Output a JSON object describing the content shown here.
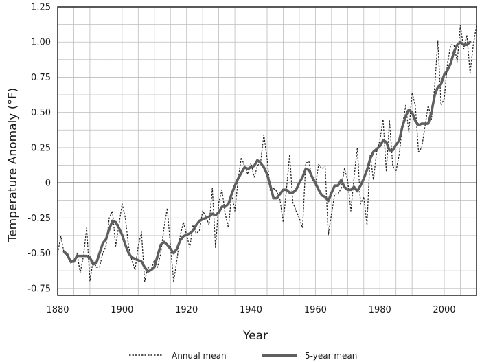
{
  "chart_data": {
    "type": "line",
    "title": "",
    "xlabel": "Year",
    "ylabel": "Temperature Anomaly (°F)",
    "xlim": [
      1880,
      2010
    ],
    "ylim": [
      -0.8,
      1.25
    ],
    "x_ticks": [
      1880,
      1900,
      1920,
      1940,
      1960,
      1980,
      2000
    ],
    "x_tick_labels": [
      "1880",
      "1900",
      "1920",
      "1940",
      "1960",
      "1980",
      "2000"
    ],
    "y_ticks": [
      -0.75,
      -0.5,
      -0.25,
      0,
      0.25,
      0.5,
      0.75,
      1.0,
      1.25
    ],
    "y_tick_labels": [
      "-0.75",
      "-0.50",
      "-0.25",
      "0",
      "0.25",
      "0.50",
      "0.75",
      "1.00",
      "1.25"
    ],
    "x_minor_step": 5,
    "y_minor_step": 0.125,
    "grid": true,
    "zero_line": true,
    "legend_position": "bottom-center",
    "series": [
      {
        "name": "Annual mean",
        "style": "dotted",
        "color": "#222222",
        "x": [
          1880,
          1881,
          1882,
          1883,
          1884,
          1885,
          1886,
          1887,
          1888,
          1889,
          1890,
          1891,
          1892,
          1893,
          1894,
          1895,
          1896,
          1897,
          1898,
          1899,
          1900,
          1901,
          1902,
          1903,
          1904,
          1905,
          1906,
          1907,
          1908,
          1909,
          1910,
          1911,
          1912,
          1913,
          1914,
          1915,
          1916,
          1917,
          1918,
          1919,
          1920,
          1921,
          1922,
          1923,
          1924,
          1925,
          1926,
          1927,
          1928,
          1929,
          1930,
          1931,
          1932,
          1933,
          1934,
          1935,
          1936,
          1937,
          1938,
          1939,
          1940,
          1941,
          1942,
          1943,
          1944,
          1945,
          1946,
          1947,
          1948,
          1949,
          1950,
          1951,
          1952,
          1953,
          1954,
          1955,
          1956,
          1957,
          1958,
          1959,
          1960,
          1961,
          1962,
          1963,
          1964,
          1965,
          1966,
          1967,
          1968,
          1969,
          1970,
          1971,
          1972,
          1973,
          1974,
          1975,
          1976,
          1977,
          1978,
          1979,
          1980,
          1981,
          1982,
          1983,
          1984,
          1985,
          1986,
          1987,
          1988,
          1989,
          1990,
          1991,
          1992,
          1993,
          1994,
          1995,
          1996,
          1997,
          1998,
          1999,
          2000,
          2001,
          2002,
          2003,
          2004,
          2005,
          2006,
          2007,
          2008,
          2009,
          2010
        ],
        "values": [
          -0.5,
          -0.38,
          -0.5,
          -0.52,
          -0.57,
          -0.56,
          -0.5,
          -0.64,
          -0.52,
          -0.32,
          -0.7,
          -0.55,
          -0.6,
          -0.6,
          -0.5,
          -0.45,
          -0.25,
          -0.2,
          -0.45,
          -0.3,
          -0.15,
          -0.25,
          -0.45,
          -0.55,
          -0.62,
          -0.45,
          -0.35,
          -0.7,
          -0.6,
          -0.62,
          -0.55,
          -0.6,
          -0.5,
          -0.32,
          -0.18,
          -0.45,
          -0.7,
          -0.55,
          -0.38,
          -0.28,
          -0.37,
          -0.46,
          -0.3,
          -0.36,
          -0.34,
          -0.2,
          -0.24,
          -0.3,
          -0.04,
          -0.46,
          -0.14,
          -0.05,
          -0.22,
          -0.32,
          -0.08,
          -0.2,
          0.02,
          0.18,
          0.12,
          0.06,
          0.14,
          0.04,
          0.12,
          0.15,
          0.34,
          0.17,
          -0.06,
          -0.04,
          -0.06,
          -0.12,
          -0.28,
          -0.05,
          0.2,
          -0.14,
          -0.2,
          -0.25,
          -0.32,
          0.14,
          0.15,
          0.02,
          -0.02,
          0.13,
          0.1,
          0.12,
          -0.37,
          -0.22,
          -0.08,
          -0.08,
          -0.04,
          0.1,
          0.02,
          -0.2,
          0.04,
          0.25,
          -0.15,
          -0.1,
          -0.3,
          0.2,
          0.02,
          0.22,
          0.3,
          0.45,
          0.08,
          0.44,
          0.12,
          0.08,
          0.2,
          0.4,
          0.55,
          0.36,
          0.64,
          0.55,
          0.22,
          0.25,
          0.4,
          0.55,
          0.45,
          0.68,
          1.01,
          0.55,
          0.6,
          0.85,
          0.98,
          0.98,
          0.86,
          1.12,
          0.95,
          1.05,
          0.78,
          0.98,
          1.12
        ]
      },
      {
        "name": "5-year mean",
        "style": "solid",
        "color": "#5f5f5f",
        "x": [
          1882,
          1883,
          1884,
          1885,
          1886,
          1887,
          1888,
          1889,
          1890,
          1891,
          1892,
          1893,
          1894,
          1895,
          1896,
          1897,
          1898,
          1899,
          1900,
          1901,
          1902,
          1903,
          1904,
          1905,
          1906,
          1907,
          1908,
          1909,
          1910,
          1911,
          1912,
          1913,
          1914,
          1915,
          1916,
          1917,
          1918,
          1919,
          1920,
          1921,
          1922,
          1923,
          1924,
          1925,
          1926,
          1927,
          1928,
          1929,
          1930,
          1931,
          1932,
          1933,
          1934,
          1935,
          1936,
          1937,
          1938,
          1939,
          1940,
          1941,
          1942,
          1943,
          1944,
          1945,
          1946,
          1947,
          1948,
          1949,
          1950,
          1951,
          1952,
          1953,
          1954,
          1955,
          1956,
          1957,
          1958,
          1959,
          1960,
          1961,
          1962,
          1963,
          1964,
          1965,
          1966,
          1967,
          1968,
          1969,
          1970,
          1971,
          1972,
          1973,
          1974,
          1975,
          1976,
          1977,
          1978,
          1979,
          1980,
          1981,
          1982,
          1983,
          1984,
          1985,
          1986,
          1987,
          1988,
          1989,
          1990,
          1991,
          1992,
          1993,
          1994,
          1995,
          1996,
          1997,
          1998,
          1999,
          2000,
          2001,
          2002,
          2003,
          2004,
          2005,
          2006,
          2007,
          2008
        ],
        "values": [
          -0.49,
          -0.51,
          -0.56,
          -0.56,
          -0.52,
          -0.52,
          -0.52,
          -0.52,
          -0.53,
          -0.58,
          -0.57,
          -0.5,
          -0.43,
          -0.4,
          -0.33,
          -0.27,
          -0.28,
          -0.32,
          -0.37,
          -0.44,
          -0.5,
          -0.53,
          -0.54,
          -0.55,
          -0.56,
          -0.6,
          -0.63,
          -0.62,
          -0.6,
          -0.52,
          -0.44,
          -0.42,
          -0.44,
          -0.47,
          -0.5,
          -0.47,
          -0.41,
          -0.38,
          -0.37,
          -0.36,
          -0.34,
          -0.3,
          -0.27,
          -0.26,
          -0.25,
          -0.24,
          -0.22,
          -0.23,
          -0.21,
          -0.17,
          -0.17,
          -0.15,
          -0.08,
          -0.02,
          0.03,
          0.07,
          0.11,
          0.1,
          0.11,
          0.12,
          0.16,
          0.14,
          0.11,
          0.06,
          -0.02,
          -0.11,
          -0.11,
          -0.08,
          -0.05,
          -0.05,
          -0.07,
          -0.07,
          -0.05,
          0.0,
          0.04,
          0.1,
          0.09,
          0.04,
          0.0,
          -0.05,
          -0.09,
          -0.1,
          -0.13,
          -0.07,
          -0.02,
          -0.02,
          0.02,
          -0.03,
          -0.05,
          -0.05,
          -0.03,
          -0.06,
          -0.02,
          0.03,
          0.09,
          0.17,
          0.22,
          0.24,
          0.26,
          0.3,
          0.29,
          0.23,
          0.23,
          0.27,
          0.3,
          0.4,
          0.47,
          0.52,
          0.5,
          0.44,
          0.41,
          0.42,
          0.42,
          0.42,
          0.5,
          0.62,
          0.68,
          0.7,
          0.77,
          0.8,
          0.85,
          0.93,
          0.98,
          1.0,
          0.98,
          0.98,
          1.0
        ]
      }
    ]
  }
}
